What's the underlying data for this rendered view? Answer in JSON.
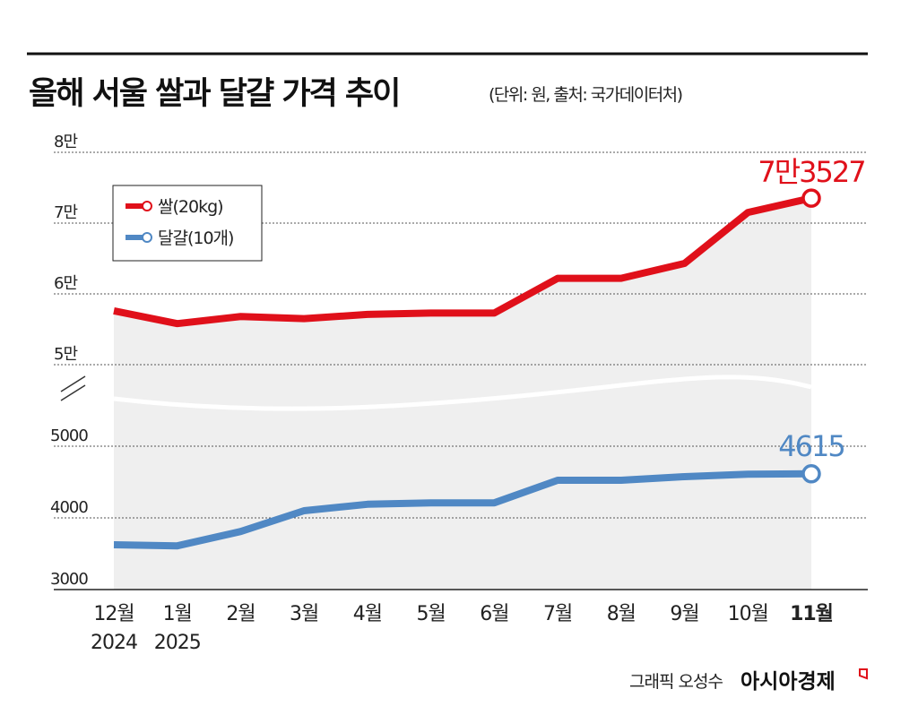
{
  "chart_data": {
    "type": "line",
    "title": "올해 서울 쌀과 달걀 가격 추이",
    "subtitle": "(단위: 원, 출처: 국가데이터처)",
    "categories": [
      "12월",
      "1월",
      "2월",
      "3월",
      "4월",
      "5월",
      "6월",
      "7월",
      "8월",
      "9월",
      "10월",
      "11월"
    ],
    "category_years": [
      "2024",
      "2025"
    ],
    "axis_break": true,
    "upper_axis": {
      "ticks": [
        50000,
        60000,
        70000,
        80000
      ],
      "tick_labels": [
        "5만",
        "6만",
        "7만",
        "8만"
      ],
      "ylim": [
        50000,
        80000
      ]
    },
    "lower_axis": {
      "ticks": [
        3000,
        4000,
        5000
      ],
      "tick_labels": [
        "3000",
        "4000",
        "5000"
      ],
      "ylim": [
        3000,
        5000
      ]
    },
    "grid": true,
    "legend_position": "top-left",
    "series": [
      {
        "name": "쌀(20kg)",
        "axis": "upper",
        "color": "#e0101a",
        "values": [
          57600,
          55800,
          56800,
          56500,
          57100,
          57300,
          57300,
          62200,
          62200,
          64300,
          71500,
          73527
        ],
        "end_label": "7만3527"
      },
      {
        "name": "달걀(10개)",
        "axis": "lower",
        "color": "#5088c4",
        "values": [
          3625,
          3610,
          3810,
          4100,
          4190,
          4210,
          4210,
          4525,
          4525,
          4575,
          4610,
          4615
        ],
        "end_label": "4615"
      }
    ]
  },
  "footer": {
    "credit": "그래픽 오성수",
    "brand": "아시아경제"
  }
}
